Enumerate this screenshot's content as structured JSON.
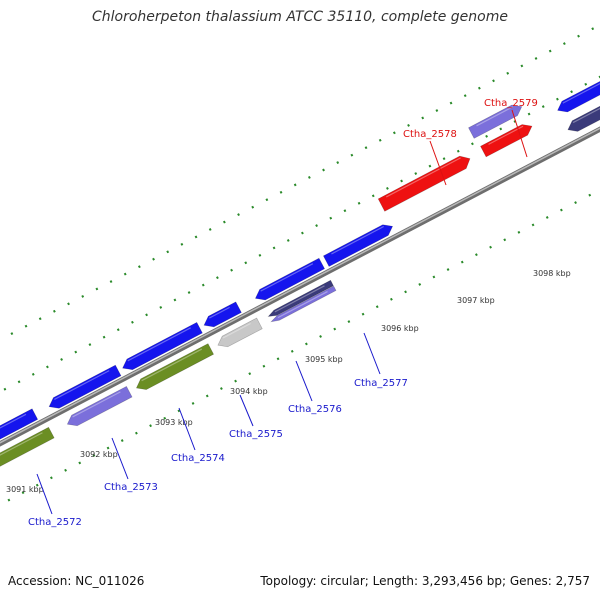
{
  "title": "Chloroherpeton thalassium ATCC 35110, complete genome",
  "footer": {
    "accession": "Accession: NC_011026",
    "summary": "Topology: circular; Length: 3,293,456 bp; Genes: 2,757"
  },
  "colors": {
    "backbone": "#888888",
    "tick": "#2a8a2a",
    "label_blue": "#1a1acc",
    "label_red": "#dd1111",
    "kbp_text": "#333333",
    "gene_blue": "#1515ee",
    "gene_violet": "#7b6fdb",
    "gene_olive": "#6b8e23",
    "gene_gray": "#c8c8c8",
    "gene_red": "#ee1111",
    "gene_navy": "#3a3a7a"
  },
  "kbp_labels": [
    "3091 kbp",
    "3092 kbp",
    "3093 kbp",
    "3094 kbp",
    "3095 kbp",
    "3096 kbp",
    "3097 kbp",
    "3098 kbp"
  ],
  "gene_labels": [
    {
      "text": "Ctha_2572",
      "highlight": false
    },
    {
      "text": "Ctha_2573",
      "highlight": false
    },
    {
      "text": "Ctha_2574",
      "highlight": false
    },
    {
      "text": "Ctha_2575",
      "highlight": false
    },
    {
      "text": "Ctha_2576",
      "highlight": false
    },
    {
      "text": "Ctha_2577",
      "highlight": false
    },
    {
      "text": "Ctha_2578",
      "highlight": true
    },
    {
      "text": "Ctha_2579",
      "highlight": true
    }
  ]
}
